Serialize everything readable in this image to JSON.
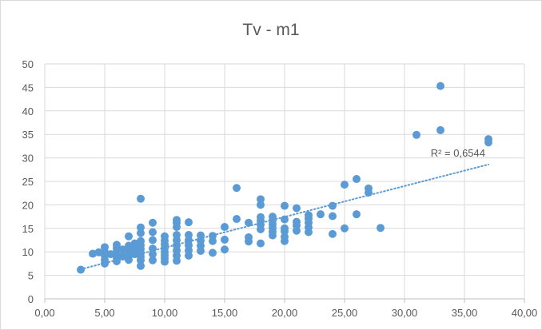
{
  "chart_data": {
    "type": "scatter",
    "title": "Tv - m1",
    "xlabel": "",
    "ylabel": "",
    "xlim": [
      0,
      40
    ],
    "ylim": [
      0,
      50
    ],
    "x_ticks": [
      "0,00",
      "5,00",
      "10,00",
      "15,00",
      "20,00",
      "25,00",
      "30,00",
      "35,00",
      "40,00"
    ],
    "y_ticks": [
      "0",
      "5",
      "10",
      "15",
      "20",
      "25",
      "30",
      "35",
      "40",
      "45",
      "50"
    ],
    "grid": true,
    "marker_color": "#5b9bd5",
    "trendline": {
      "type": "linear",
      "style": "dotted",
      "x_range": [
        3,
        37
      ],
      "y_start": 6.3,
      "y_end": 28.6,
      "label": "R² = 0,6544"
    },
    "points": [
      {
        "x": 3,
        "y": 6.2
      },
      {
        "x": 4,
        "y": 9.6
      },
      {
        "x": 4.5,
        "y": 9.9
      },
      {
        "x": 5,
        "y": 7.5
      },
      {
        "x": 5,
        "y": 8.3
      },
      {
        "x": 5,
        "y": 9.2
      },
      {
        "x": 5,
        "y": 10
      },
      {
        "x": 5,
        "y": 11
      },
      {
        "x": 5.5,
        "y": 9.5
      },
      {
        "x": 6,
        "y": 8
      },
      {
        "x": 6,
        "y": 8.7
      },
      {
        "x": 6,
        "y": 9.4
      },
      {
        "x": 6,
        "y": 10.1
      },
      {
        "x": 6,
        "y": 10.8
      },
      {
        "x": 6,
        "y": 11.5
      },
      {
        "x": 6.5,
        "y": 9
      },
      {
        "x": 6.5,
        "y": 10.5
      },
      {
        "x": 7,
        "y": 8.3
      },
      {
        "x": 7,
        "y": 9
      },
      {
        "x": 7,
        "y": 9.8
      },
      {
        "x": 7,
        "y": 10.5
      },
      {
        "x": 7,
        "y": 11.3
      },
      {
        "x": 7,
        "y": 13.3
      },
      {
        "x": 7.5,
        "y": 9.5
      },
      {
        "x": 7.5,
        "y": 10.8
      },
      {
        "x": 7.5,
        "y": 11.8
      },
      {
        "x": 8,
        "y": 7
      },
      {
        "x": 8,
        "y": 8.2
      },
      {
        "x": 8,
        "y": 9
      },
      {
        "x": 8,
        "y": 9.8
      },
      {
        "x": 8,
        "y": 10.6
      },
      {
        "x": 8,
        "y": 11.4
      },
      {
        "x": 8,
        "y": 12.3
      },
      {
        "x": 8,
        "y": 14
      },
      {
        "x": 8,
        "y": 15.2
      },
      {
        "x": 8,
        "y": 21.3
      },
      {
        "x": 9,
        "y": 8.2
      },
      {
        "x": 9,
        "y": 9.5
      },
      {
        "x": 9,
        "y": 10.7
      },
      {
        "x": 9,
        "y": 12.5
      },
      {
        "x": 9,
        "y": 14.2
      },
      {
        "x": 9,
        "y": 16.2
      },
      {
        "x": 10,
        "y": 7.9
      },
      {
        "x": 10,
        "y": 8.6
      },
      {
        "x": 10,
        "y": 9.3
      },
      {
        "x": 10,
        "y": 10
      },
      {
        "x": 10,
        "y": 10.8
      },
      {
        "x": 10,
        "y": 11.6
      },
      {
        "x": 10,
        "y": 12.4
      },
      {
        "x": 10,
        "y": 13.3
      },
      {
        "x": 11,
        "y": 8.1
      },
      {
        "x": 11,
        "y": 9.2
      },
      {
        "x": 11,
        "y": 10.3
      },
      {
        "x": 11,
        "y": 11.4
      },
      {
        "x": 11,
        "y": 12.5
      },
      {
        "x": 11,
        "y": 13.6
      },
      {
        "x": 11,
        "y": 15.3
      },
      {
        "x": 11,
        "y": 16.2
      },
      {
        "x": 11,
        "y": 16.8
      },
      {
        "x": 12,
        "y": 9.2
      },
      {
        "x": 12,
        "y": 10.3
      },
      {
        "x": 12,
        "y": 11.4
      },
      {
        "x": 12,
        "y": 12.5
      },
      {
        "x": 12,
        "y": 13.6
      },
      {
        "x": 12,
        "y": 16.3
      },
      {
        "x": 13,
        "y": 10.2
      },
      {
        "x": 13,
        "y": 11.3
      },
      {
        "x": 13,
        "y": 12.4
      },
      {
        "x": 13,
        "y": 13.5
      },
      {
        "x": 14,
        "y": 9.8
      },
      {
        "x": 14,
        "y": 12.3
      },
      {
        "x": 14,
        "y": 13.4
      },
      {
        "x": 15,
        "y": 10.5
      },
      {
        "x": 15,
        "y": 12.6
      },
      {
        "x": 15,
        "y": 15.3
      },
      {
        "x": 16,
        "y": 17
      },
      {
        "x": 16,
        "y": 23.6
      },
      {
        "x": 17,
        "y": 12.2
      },
      {
        "x": 17,
        "y": 13.1
      },
      {
        "x": 17,
        "y": 16.2
      },
      {
        "x": 18,
        "y": 11.8
      },
      {
        "x": 18,
        "y": 14.8
      },
      {
        "x": 18,
        "y": 15.8
      },
      {
        "x": 18,
        "y": 16.6
      },
      {
        "x": 18,
        "y": 17.4
      },
      {
        "x": 18,
        "y": 20
      },
      {
        "x": 18,
        "y": 21.2
      },
      {
        "x": 19,
        "y": 13.5
      },
      {
        "x": 19,
        "y": 14.3
      },
      {
        "x": 19,
        "y": 15.1
      },
      {
        "x": 19,
        "y": 15.9
      },
      {
        "x": 19,
        "y": 16.7
      },
      {
        "x": 19,
        "y": 17.5
      },
      {
        "x": 20,
        "y": 12.3
      },
      {
        "x": 20,
        "y": 13.2
      },
      {
        "x": 20,
        "y": 14.4
      },
      {
        "x": 20,
        "y": 15
      },
      {
        "x": 20,
        "y": 16.9
      },
      {
        "x": 20,
        "y": 19.8
      },
      {
        "x": 21,
        "y": 14.5
      },
      {
        "x": 21,
        "y": 15.6
      },
      {
        "x": 21,
        "y": 16.4
      },
      {
        "x": 21,
        "y": 19.3
      },
      {
        "x": 22,
        "y": 14.2
      },
      {
        "x": 22,
        "y": 15.2
      },
      {
        "x": 22,
        "y": 16.2
      },
      {
        "x": 22,
        "y": 17.1
      },
      {
        "x": 22,
        "y": 17.8
      },
      {
        "x": 23,
        "y": 18
      },
      {
        "x": 24,
        "y": 13.8
      },
      {
        "x": 24,
        "y": 17.6
      },
      {
        "x": 24,
        "y": 19.8
      },
      {
        "x": 25,
        "y": 15
      },
      {
        "x": 25,
        "y": 24.3
      },
      {
        "x": 26,
        "y": 18
      },
      {
        "x": 26,
        "y": 25.5
      },
      {
        "x": 27,
        "y": 22.6
      },
      {
        "x": 27,
        "y": 23.5
      },
      {
        "x": 28,
        "y": 15.1
      },
      {
        "x": 31,
        "y": 34.9
      },
      {
        "x": 33,
        "y": 35.9
      },
      {
        "x": 33,
        "y": 45.3
      },
      {
        "x": 37,
        "y": 33.3
      },
      {
        "x": 37,
        "y": 34
      }
    ]
  }
}
